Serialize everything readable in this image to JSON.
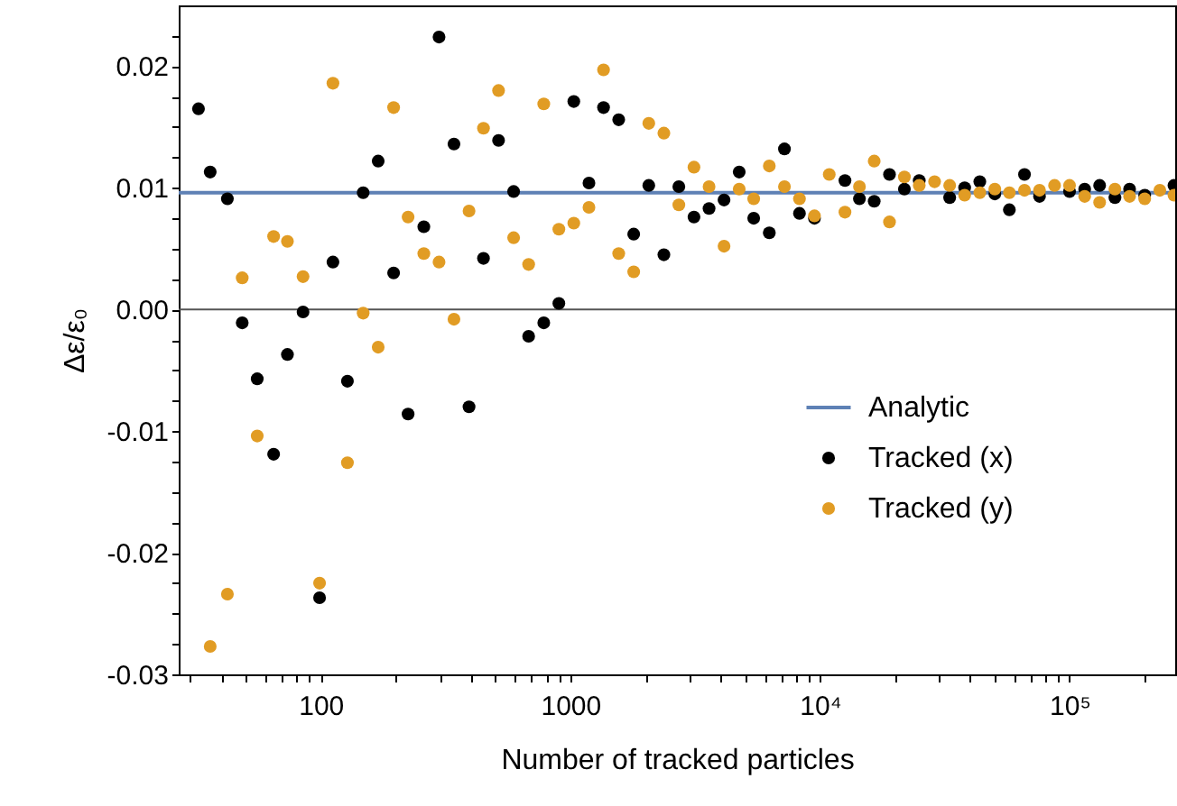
{
  "chart_data": {
    "type": "scatter",
    "xlabel": "Number of tracked particles",
    "ylabel": "Δε/ε₀",
    "log": "x",
    "grid": false,
    "legend": "bottom right",
    "xlim": [
      27,
      265000
    ],
    "ylim": [
      -0.03,
      0.025
    ],
    "xticks": [
      {
        "value": 30,
        "label": null
      },
      {
        "value": 40,
        "label": null
      },
      {
        "value": 50,
        "label": null
      },
      {
        "value": 60,
        "label": null
      },
      {
        "value": 70,
        "label": null
      },
      {
        "value": 80,
        "label": null
      },
      {
        "value": 90,
        "label": null
      },
      100,
      {
        "value": 200,
        "label": null
      },
      {
        "value": 300,
        "label": null
      },
      {
        "value": 400,
        "label": null
      },
      {
        "value": 500,
        "label": null
      },
      {
        "value": 600,
        "label": null
      },
      {
        "value": 700,
        "label": null
      },
      {
        "value": 800,
        "label": null
      },
      {
        "value": 900,
        "label": null
      },
      1000,
      {
        "value": 2000,
        "label": null
      },
      {
        "value": 3000,
        "label": null
      },
      {
        "value": 4000,
        "label": null
      },
      {
        "value": 5000,
        "label": null
      },
      {
        "value": 6000,
        "label": null
      },
      {
        "value": 7000,
        "label": null
      },
      {
        "value": 8000,
        "label": null
      },
      {
        "value": 9000,
        "label": null
      },
      {
        "value": 10000,
        "label": "10⁴"
      },
      {
        "value": 20000,
        "label": null
      },
      {
        "value": 30000,
        "label": null
      },
      {
        "value": 40000,
        "label": null
      },
      {
        "value": 50000,
        "label": null
      },
      {
        "value": 60000,
        "label": null
      },
      {
        "value": 70000,
        "label": null
      },
      {
        "value": 80000,
        "label": null
      },
      {
        "value": 90000,
        "label": null
      },
      {
        "value": 100000,
        "label": "10⁵"
      },
      {
        "value": 200000,
        "label": null
      }
    ],
    "yticks": [
      {
        "value": -0.03,
        "label": "-0.03"
      },
      {
        "value": -0.0275,
        "label": null
      },
      {
        "value": -0.025,
        "label": null
      },
      {
        "value": -0.0225,
        "label": null
      },
      {
        "value": -0.02,
        "label": "-0.02"
      },
      {
        "value": -0.0175,
        "label": null
      },
      {
        "value": -0.015,
        "label": null
      },
      {
        "value": -0.0125,
        "label": null
      },
      {
        "value": -0.01,
        "label": "-0.01"
      },
      {
        "value": -0.0075,
        "label": null
      },
      {
        "value": -0.005,
        "label": null
      },
      {
        "value": -0.0025,
        "label": null
      },
      {
        "value": 0,
        "label": "0.00"
      },
      {
        "value": 0.0025,
        "label": null
      },
      {
        "value": 0.005,
        "label": null
      },
      {
        "value": 0.0075,
        "label": null
      },
      {
        "value": 0.01,
        "label": "0.01"
      },
      {
        "value": 0.0125,
        "label": null
      },
      {
        "value": 0.015,
        "label": null
      },
      {
        "value": 0.0175,
        "label": null
      },
      {
        "value": 0.02,
        "label": "0.02"
      },
      {
        "value": 0.0225,
        "label": null
      }
    ],
    "ref_lines": [
      {
        "axis": "y",
        "value": 0,
        "color": "#555555"
      }
    ],
    "series": [
      {
        "name": "Analytic",
        "type": "line",
        "color": "#5e81b5",
        "x": [
          27,
          265000
        ],
        "values": [
          0.0096,
          0.0096
        ]
      },
      {
        "name": "Tracked (x)",
        "type": "scatter",
        "color": "#000000",
        "x": [
          32.4,
          36.1,
          42.3,
          48.5,
          55.7,
          64.8,
          73.6,
          85,
          99,
          112,
          128,
          148,
          170,
          196,
          224,
          259,
          298,
          342,
          393,
          449,
          516,
          593,
          681,
          783,
          900,
          1033,
          1188,
          1359,
          1563,
          1795,
          2063,
          2371,
          2722,
          3130,
          3597,
          4130,
          4750,
          5430,
          6270,
          7210,
          8280,
          9510,
          10900,
          12600,
          14400,
          16500,
          19000,
          21800,
          25000,
          28800,
          33100,
          38000,
          43700,
          50200,
          57400,
          66000,
          75800,
          87100,
          100000,
          115000,
          132000,
          152000,
          174000,
          200000,
          230000,
          262000
        ],
        "values": [
          0.0165,
          0.0113,
          0.0091,
          -0.0011,
          -0.0057,
          -0.0119,
          -0.0037,
          -0.0002,
          -0.0237,
          0.0039,
          -0.0059,
          0.0096,
          0.0122,
          0.003,
          -0.0086,
          0.0068,
          0.0224,
          0.0136,
          -0.008,
          0.0042,
          0.0139,
          0.0097,
          -0.0022,
          -0.0011,
          0.0005,
          0.0171,
          0.0104,
          0.0166,
          0.0156,
          0.0062,
          0.0102,
          0.0045,
          0.0101,
          0.0076,
          0.0083,
          0.009,
          0.0113,
          0.0075,
          0.0063,
          0.0132,
          0.0079,
          0.0075,
          null,
          0.0106,
          0.0091,
          0.0089,
          0.0111,
          0.0099,
          0.0106,
          null,
          0.0092,
          0.01,
          0.0105,
          0.0095,
          0.0082,
          0.0111,
          0.0093,
          null,
          0.0097,
          0.0099,
          0.0102,
          0.0092,
          0.0099,
          0.0094,
          null,
          0.0102
        ]
      },
      {
        "name": "Tracked (y)",
        "type": "scatter",
        "color": "#e19c24",
        "x": [
          36.1,
          42.3,
          48.5,
          55.7,
          64.8,
          73.6,
          85,
          99,
          112,
          128,
          148,
          170,
          196,
          224,
          259,
          298,
          342,
          393,
          449,
          516,
          593,
          681,
          783,
          900,
          1033,
          1188,
          1359,
          1563,
          1795,
          2063,
          2371,
          2722,
          3130,
          3597,
          4130,
          4750,
          5430,
          6270,
          7210,
          8280,
          9510,
          10900,
          12600,
          14400,
          16500,
          19000,
          21800,
          25000,
          28800,
          33100,
          38000,
          43700,
          50200,
          57400,
          66000,
          75800,
          87100,
          100000,
          115000,
          132000,
          152000,
          174000,
          200000,
          230000,
          262000
        ],
        "values": [
          -0.0277,
          -0.0234,
          0.0026,
          -0.0104,
          0.006,
          0.0056,
          0.0027,
          -0.0225,
          0.0186,
          -0.0126,
          -0.0003,
          -0.0031,
          0.0166,
          0.0076,
          0.0046,
          0.0039,
          -0.0008,
          0.0081,
          0.0149,
          0.018,
          0.0059,
          0.0037,
          0.0169,
          0.0066,
          0.0071,
          0.0084,
          0.0197,
          0.0046,
          0.0031,
          0.0153,
          0.0145,
          0.0086,
          0.0117,
          0.0101,
          0.0052,
          0.0099,
          0.0091,
          0.0118,
          0.0101,
          0.0091,
          0.0077,
          0.0111,
          0.008,
          0.0101,
          0.0122,
          0.0072,
          0.0109,
          0.0102,
          0.0105,
          0.0102,
          0.0094,
          0.0096,
          0.0099,
          0.0096,
          0.0098,
          0.0098,
          0.0102,
          0.0102,
          0.0093,
          0.0088,
          0.0099,
          0.0093,
          0.0091,
          0.0098,
          0.0094
        ]
      }
    ]
  }
}
